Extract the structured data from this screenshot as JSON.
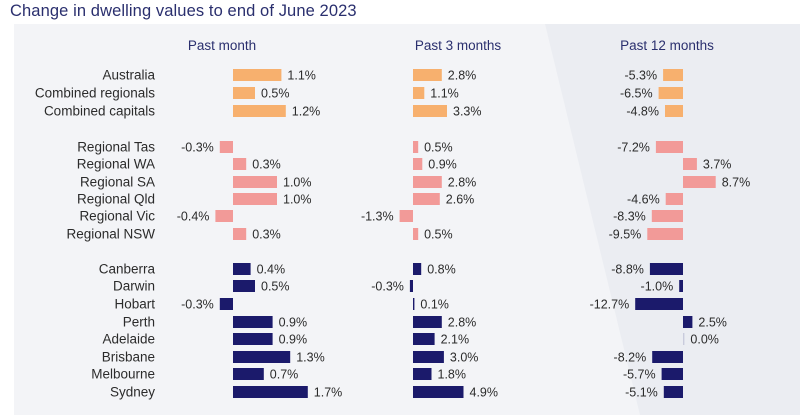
{
  "title": "Change in dwelling values to end of June 2023",
  "colors": {
    "aggregate": "#f7b06e",
    "regional": "#f29a98",
    "capital": "#1b1a6b",
    "title": "#2a2f6e",
    "panel": "#f3f4f7"
  },
  "chart_data": {
    "type": "bar",
    "orientation": "horizontal",
    "title": "Change in dwelling values to end of June 2023",
    "panels": [
      "Past month",
      "Past 3 months",
      "Past 12 months"
    ],
    "categories": [
      "Australia",
      "Combined regionals",
      "Combined capitals",
      "Regional Tas",
      "Regional WA",
      "Regional SA",
      "Regional Qld",
      "Regional Vic",
      "Regional NSW",
      "Canberra",
      "Darwin",
      "Hobart",
      "Perth",
      "Adelaide",
      "Brisbane",
      "Melbourne",
      "Sydney"
    ],
    "groups": [
      "aggregate",
      "aggregate",
      "aggregate",
      "regional",
      "regional",
      "regional",
      "regional",
      "regional",
      "regional",
      "capital",
      "capital",
      "capital",
      "capital",
      "capital",
      "capital",
      "capital",
      "capital"
    ],
    "series": [
      {
        "name": "Past month",
        "values": [
          1.1,
          0.5,
          1.2,
          -0.3,
          0.3,
          1.0,
          1.0,
          -0.4,
          0.3,
          0.4,
          0.5,
          -0.3,
          0.9,
          0.9,
          1.3,
          0.7,
          1.7
        ],
        "labels": [
          "1.1%",
          "0.5%",
          "1.2%",
          "-0.3%",
          "0.3%",
          "1.0%",
          "1.0%",
          "-0.4%",
          "0.3%",
          "0.4%",
          "0.5%",
          "-0.3%",
          "0.9%",
          "0.9%",
          "1.3%",
          "0.7%",
          "1.7%"
        ]
      },
      {
        "name": "Past 3 months",
        "values": [
          2.8,
          1.1,
          3.3,
          0.5,
          0.9,
          2.8,
          2.6,
          -1.3,
          0.5,
          0.8,
          -0.3,
          0.1,
          2.8,
          2.1,
          3.0,
          1.8,
          4.9
        ],
        "labels": [
          "2.8%",
          "1.1%",
          "3.3%",
          "0.5%",
          "0.9%",
          "2.8%",
          "2.6%",
          "-1.3%",
          "0.5%",
          "0.8%",
          "-0.3%",
          "0.1%",
          "2.8%",
          "2.1%",
          "3.0%",
          "1.8%",
          "4.9%"
        ]
      },
      {
        "name": "Past 12 months",
        "values": [
          -5.3,
          -6.5,
          -4.8,
          -7.2,
          3.7,
          8.7,
          -4.6,
          -8.3,
          -9.5,
          -8.8,
          -1.0,
          -12.7,
          2.5,
          0.0,
          -8.2,
          -5.7,
          -5.1
        ],
        "labels": [
          "-5.3%",
          "-6.5%",
          "-4.8%",
          "-7.2%",
          "3.7%",
          "8.7%",
          "-4.6%",
          "-8.3%",
          "-9.5%",
          "-8.8%",
          "-1.0%",
          "-12.7%",
          "2.5%",
          "0.0%",
          "-8.2%",
          "-5.7%",
          "-5.1%"
        ]
      }
    ]
  }
}
